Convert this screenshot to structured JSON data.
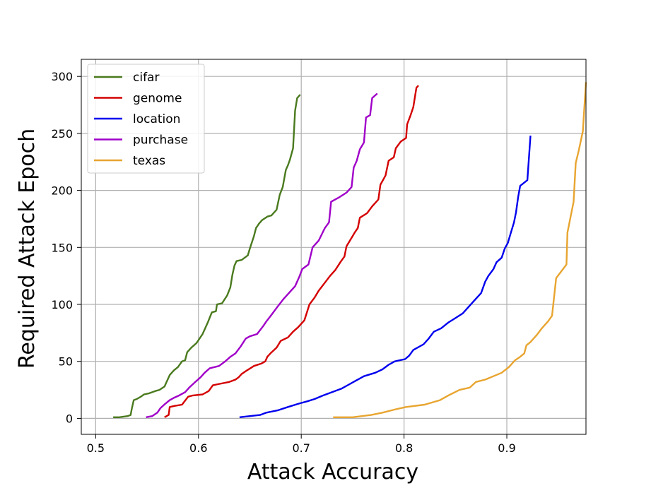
{
  "chart_data": {
    "type": "line",
    "xlabel": "Attack Accuracy",
    "ylabel": "Required Attack Epoch",
    "xlim": [
      0.486,
      0.977
    ],
    "ylim": [
      -14,
      315
    ],
    "xticks": [
      0.5,
      0.6,
      0.7,
      0.8,
      0.9
    ],
    "xtick_labels": [
      "0.5",
      "0.6",
      "0.7",
      "0.8",
      "0.9"
    ],
    "yticks": [
      0,
      50,
      100,
      150,
      200,
      250,
      300
    ],
    "ytick_labels": [
      "0",
      "50",
      "100",
      "150",
      "200",
      "250",
      "300"
    ],
    "grid": true,
    "legend_position": "top-left",
    "series": [
      {
        "name": "cifar",
        "color": "#4a7a1e",
        "points": [
          [
            0.517,
            1
          ],
          [
            0.523,
            1
          ],
          [
            0.531,
            2
          ],
          [
            0.534,
            3
          ],
          [
            0.535,
            8
          ],
          [
            0.537,
            16
          ],
          [
            0.54,
            17
          ],
          [
            0.544,
            19
          ],
          [
            0.547,
            21
          ],
          [
            0.552,
            22
          ],
          [
            0.558,
            24
          ],
          [
            0.562,
            25
          ],
          [
            0.567,
            28
          ],
          [
            0.569,
            32
          ],
          [
            0.572,
            38
          ],
          [
            0.576,
            42
          ],
          [
            0.58,
            45
          ],
          [
            0.584,
            50
          ],
          [
            0.587,
            51
          ],
          [
            0.589,
            58
          ],
          [
            0.593,
            62
          ],
          [
            0.598,
            66
          ],
          [
            0.604,
            74
          ],
          [
            0.609,
            84
          ],
          [
            0.613,
            93
          ],
          [
            0.617,
            94
          ],
          [
            0.618,
            100
          ],
          [
            0.623,
            101
          ],
          [
            0.628,
            108
          ],
          [
            0.631,
            115
          ],
          [
            0.633,
            126
          ],
          [
            0.635,
            134
          ],
          [
            0.637,
            138
          ],
          [
            0.642,
            139
          ],
          [
            0.648,
            143
          ],
          [
            0.65,
            149
          ],
          [
            0.654,
            160
          ],
          [
            0.656,
            167
          ],
          [
            0.659,
            171
          ],
          [
            0.662,
            174
          ],
          [
            0.667,
            177
          ],
          [
            0.671,
            178
          ],
          [
            0.676,
            183
          ],
          [
            0.679,
            196
          ],
          [
            0.682,
            203
          ],
          [
            0.685,
            218
          ],
          [
            0.687,
            222
          ],
          [
            0.689,
            227
          ],
          [
            0.692,
            237
          ],
          [
            0.694,
            270
          ],
          [
            0.696,
            281
          ],
          [
            0.699,
            284
          ]
        ]
      },
      {
        "name": "genome",
        "color": "#d40000",
        "points": [
          [
            0.567,
            1
          ],
          [
            0.571,
            3
          ],
          [
            0.572,
            10
          ],
          [
            0.577,
            11
          ],
          [
            0.584,
            12
          ],
          [
            0.59,
            19
          ],
          [
            0.594,
            20
          ],
          [
            0.604,
            21
          ],
          [
            0.61,
            24
          ],
          [
            0.614,
            29
          ],
          [
            0.619,
            30
          ],
          [
            0.63,
            32
          ],
          [
            0.636,
            34
          ],
          [
            0.639,
            36
          ],
          [
            0.642,
            39
          ],
          [
            0.647,
            42
          ],
          [
            0.654,
            46
          ],
          [
            0.661,
            48
          ],
          [
            0.665,
            50
          ],
          [
            0.667,
            54
          ],
          [
            0.67,
            57
          ],
          [
            0.676,
            62
          ],
          [
            0.68,
            68
          ],
          [
            0.687,
            71
          ],
          [
            0.692,
            76
          ],
          [
            0.697,
            80
          ],
          [
            0.703,
            86
          ],
          [
            0.708,
            100
          ],
          [
            0.713,
            106
          ],
          [
            0.717,
            112
          ],
          [
            0.723,
            119
          ],
          [
            0.728,
            125
          ],
          [
            0.733,
            130
          ],
          [
            0.738,
            137
          ],
          [
            0.742,
            142
          ],
          [
            0.744,
            151
          ],
          [
            0.75,
            160
          ],
          [
            0.752,
            163
          ],
          [
            0.755,
            167
          ],
          [
            0.757,
            176
          ],
          [
            0.764,
            180
          ],
          [
            0.769,
            186
          ],
          [
            0.775,
            192
          ],
          [
            0.777,
            205
          ],
          [
            0.782,
            213
          ],
          [
            0.785,
            226
          ],
          [
            0.79,
            229
          ],
          [
            0.792,
            237
          ],
          [
            0.797,
            243
          ],
          [
            0.802,
            246
          ],
          [
            0.803,
            258
          ],
          [
            0.806,
            265
          ],
          [
            0.809,
            273
          ],
          [
            0.812,
            290
          ],
          [
            0.814,
            292
          ]
        ]
      },
      {
        "name": "location",
        "color": "#0000ee",
        "points": [
          [
            0.64,
            1
          ],
          [
            0.65,
            2
          ],
          [
            0.66,
            3
          ],
          [
            0.666,
            5
          ],
          [
            0.677,
            7
          ],
          [
            0.687,
            10
          ],
          [
            0.698,
            13
          ],
          [
            0.706,
            15
          ],
          [
            0.713,
            17
          ],
          [
            0.721,
            20
          ],
          [
            0.73,
            23
          ],
          [
            0.739,
            26
          ],
          [
            0.747,
            30
          ],
          [
            0.753,
            33
          ],
          [
            0.761,
            37
          ],
          [
            0.772,
            40
          ],
          [
            0.779,
            43
          ],
          [
            0.785,
            47
          ],
          [
            0.791,
            50
          ],
          [
            0.801,
            52
          ],
          [
            0.805,
            55
          ],
          [
            0.809,
            60
          ],
          [
            0.819,
            65
          ],
          [
            0.824,
            70
          ],
          [
            0.829,
            76
          ],
          [
            0.836,
            79
          ],
          [
            0.843,
            84
          ],
          [
            0.85,
            88
          ],
          [
            0.857,
            92
          ],
          [
            0.864,
            99
          ],
          [
            0.869,
            104
          ],
          [
            0.875,
            110
          ],
          [
            0.879,
            120
          ],
          [
            0.882,
            125
          ],
          [
            0.887,
            131
          ],
          [
            0.89,
            137
          ],
          [
            0.895,
            141
          ],
          [
            0.898,
            149
          ],
          [
            0.901,
            154
          ],
          [
            0.904,
            163
          ],
          [
            0.907,
            172
          ],
          [
            0.909,
            181
          ],
          [
            0.911,
            194
          ],
          [
            0.913,
            204
          ],
          [
            0.92,
            209
          ],
          [
            0.923,
            248
          ]
        ]
      },
      {
        "name": "purchase",
        "color": "#a000c8",
        "points": [
          [
            0.549,
            1
          ],
          [
            0.555,
            2
          ],
          [
            0.56,
            5
          ],
          [
            0.563,
            9
          ],
          [
            0.568,
            13
          ],
          [
            0.572,
            16
          ],
          [
            0.576,
            18
          ],
          [
            0.581,
            20
          ],
          [
            0.587,
            23
          ],
          [
            0.591,
            27
          ],
          [
            0.597,
            32
          ],
          [
            0.602,
            36
          ],
          [
            0.606,
            40
          ],
          [
            0.611,
            44
          ],
          [
            0.62,
            46
          ],
          [
            0.626,
            50
          ],
          [
            0.631,
            54
          ],
          [
            0.636,
            57
          ],
          [
            0.641,
            63
          ],
          [
            0.646,
            70
          ],
          [
            0.65,
            72
          ],
          [
            0.657,
            74
          ],
          [
            0.663,
            81
          ],
          [
            0.666,
            85
          ],
          [
            0.672,
            92
          ],
          [
            0.677,
            98
          ],
          [
            0.683,
            105
          ],
          [
            0.689,
            111
          ],
          [
            0.694,
            116
          ],
          [
            0.698,
            124
          ],
          [
            0.701,
            131
          ],
          [
            0.707,
            135
          ],
          [
            0.711,
            150
          ],
          [
            0.717,
            156
          ],
          [
            0.723,
            167
          ],
          [
            0.727,
            172
          ],
          [
            0.729,
            190
          ],
          [
            0.737,
            194
          ],
          [
            0.744,
            198
          ],
          [
            0.749,
            203
          ],
          [
            0.751,
            220
          ],
          [
            0.754,
            226
          ],
          [
            0.757,
            236
          ],
          [
            0.761,
            242
          ],
          [
            0.763,
            264
          ],
          [
            0.767,
            266
          ],
          [
            0.769,
            281
          ],
          [
            0.774,
            285
          ]
        ]
      },
      {
        "name": "texas",
        "color": "#e8a530",
        "points": [
          [
            0.731,
            1
          ],
          [
            0.75,
            1
          ],
          [
            0.768,
            3
          ],
          [
            0.779,
            5
          ],
          [
            0.792,
            8
          ],
          [
            0.802,
            10
          ],
          [
            0.82,
            12
          ],
          [
            0.835,
            16
          ],
          [
            0.843,
            20
          ],
          [
            0.854,
            25
          ],
          [
            0.864,
            27
          ],
          [
            0.87,
            32
          ],
          [
            0.879,
            34
          ],
          [
            0.887,
            37
          ],
          [
            0.895,
            40
          ],
          [
            0.902,
            45
          ],
          [
            0.908,
            51
          ],
          [
            0.913,
            54
          ],
          [
            0.917,
            57
          ],
          [
            0.919,
            64
          ],
          [
            0.923,
            67
          ],
          [
            0.929,
            73
          ],
          [
            0.934,
            79
          ],
          [
            0.94,
            85
          ],
          [
            0.944,
            90
          ],
          [
            0.948,
            123
          ],
          [
            0.958,
            135
          ],
          [
            0.959,
            163
          ],
          [
            0.965,
            190
          ],
          [
            0.967,
            224
          ],
          [
            0.97,
            235
          ],
          [
            0.974,
            252
          ],
          [
            0.977,
            295
          ]
        ]
      }
    ]
  }
}
